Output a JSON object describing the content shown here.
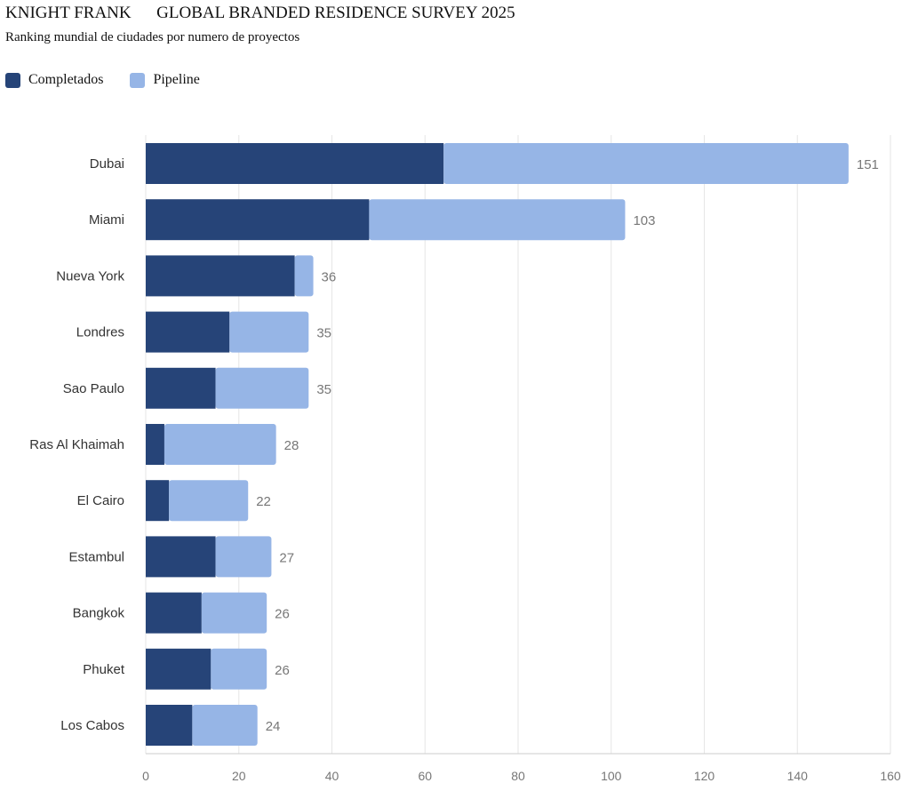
{
  "header": {
    "brand": "KNIGHT FRANK",
    "title": "GLOBAL BRANDED RESIDENCE SURVEY 2025",
    "subtitle": "Ranking mundial de ciudades por numero de proyectos"
  },
  "chart_data": {
    "type": "bar",
    "orientation": "horizontal",
    "stacked": true,
    "categories": [
      "Dubai",
      "Miami",
      "Nueva York",
      "Londres",
      "Sao Paulo",
      "Ras Al Khaimah",
      "El Cairo",
      "Estambul",
      "Bangkok",
      "Phuket",
      "Los Cabos"
    ],
    "series": [
      {
        "name": "Completados",
        "color": "#264478",
        "values": [
          64,
          48,
          32,
          18,
          15,
          4,
          5,
          15,
          12,
          14,
          10
        ]
      },
      {
        "name": "Pipeline",
        "color": "#96b5e6",
        "values": [
          87,
          55,
          4,
          17,
          20,
          24,
          17,
          12,
          14,
          12,
          14
        ]
      }
    ],
    "totals": [
      151,
      103,
      36,
      35,
      35,
      28,
      22,
      27,
      26,
      26,
      24
    ],
    "xlim": [
      0,
      160
    ],
    "xticks": [
      0,
      20,
      40,
      60,
      80,
      100,
      120,
      140,
      160
    ],
    "grid": true,
    "legend": "top-left"
  }
}
